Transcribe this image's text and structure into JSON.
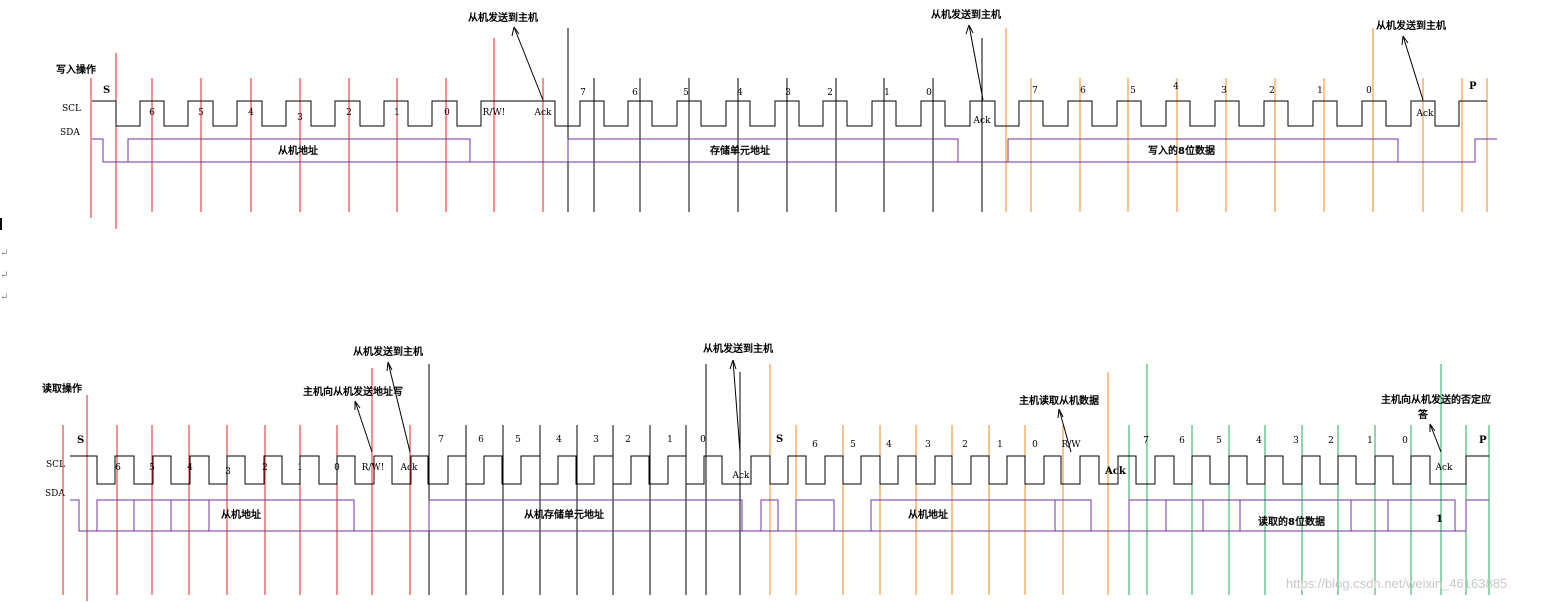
{
  "colors": {
    "clock": "#000000",
    "sda": "#7030a0",
    "red": "#e8202a",
    "black": "#000000",
    "orange": "#f08a24",
    "green": "#1fae5b"
  },
  "top": {
    "section_label": "写入操作",
    "scl_label": "SCL",
    "sda_label": "SDA",
    "start_label": "S",
    "stop_label": "P",
    "segment_labels": [
      "从机地址",
      "存储单元地址",
      "写入的8位数据"
    ],
    "annotations": [
      "从机发送到主机",
      "从机发送到主机",
      "从机发送到主机"
    ],
    "bit_labels": {
      "group1": [
        "6",
        "5",
        "4",
        "3",
        "2",
        "1",
        "0",
        "R/W!",
        "Ack"
      ],
      "group2": [
        "7",
        "6",
        "5",
        "4",
        "3",
        "2",
        "1",
        "0",
        "Ack"
      ],
      "group3": [
        "7",
        "6",
        "5",
        "4",
        "3",
        "2",
        "1",
        "0",
        "Ack"
      ]
    }
  },
  "bottom": {
    "section_label": "读取操作",
    "scl_label": "SCL",
    "sda_label": "SDA",
    "start_label": "S",
    "restart_label": "S",
    "stop_label": "P",
    "ack_bold_label": "Ack",
    "nack_value": "1",
    "segment_labels": [
      "从机地址",
      "从机存储单元地址",
      "从机地址",
      "读取的8位数据"
    ],
    "annotations": {
      "slave_to_master_1": "从机发送到主机",
      "master_addr_write": "主机向从机发送地址写",
      "slave_to_master_2": "从机发送到主机",
      "master_read_data": "主机读取从机数据",
      "master_nack_line1": "主机向从机发送的否定应",
      "master_nack_line2": "答"
    },
    "bit_labels": {
      "group1": [
        "6",
        "5",
        "4",
        "3",
        "2",
        "1",
        "0",
        "R/W!",
        "Ack"
      ],
      "group2": [
        "7",
        "6",
        "5",
        "4",
        "3",
        "2",
        "1",
        "0",
        "Ack"
      ],
      "group3": [
        "6",
        "5",
        "4",
        "3",
        "2",
        "1",
        "0",
        "R/W"
      ],
      "group4": [
        "7",
        "6",
        "5",
        "4",
        "3",
        "2",
        "1",
        "0",
        "Ack"
      ]
    }
  },
  "margin_marks": [
    "↵",
    "↵",
    "↵"
  ],
  "watermark": "https://blog.csdn.net/weixin_46163885"
}
